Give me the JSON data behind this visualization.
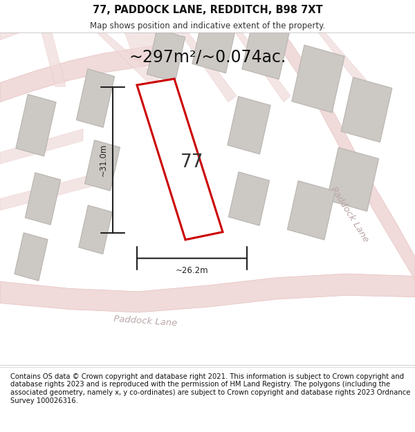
{
  "title": "77, PADDOCK LANE, REDDITCH, B98 7XT",
  "subtitle": "Map shows position and indicative extent of the property.",
  "area_text": "~297m²/~0.074ac.",
  "label_77": "77",
  "dim_vertical": "~31.0m",
  "dim_horizontal": "~26.2m",
  "footer": "Contains OS data © Crown copyright and database right 2021. This information is subject to Crown copyright and database rights 2023 and is reproduced with the permission of HM Land Registry. The polygons (including the associated geometry, namely x, y co-ordinates) are subject to Crown copyright and database rights 2023 Ordnance Survey 100026316.",
  "bg_color": "#f2efeb",
  "plot_color": "#cc0000",
  "road_fill": "#f0dada",
  "road_edge": "#e8c0c0",
  "building_fill": "#ccc8c4",
  "building_edge": "#b8b4af",
  "road_label_color": "#bba8a8",
  "dim_color": "#222222",
  "title_fontsize": 10.5,
  "subtitle_fontsize": 8.5,
  "area_fontsize": 17,
  "label_fontsize": 18,
  "footer_fontsize": 7.2
}
